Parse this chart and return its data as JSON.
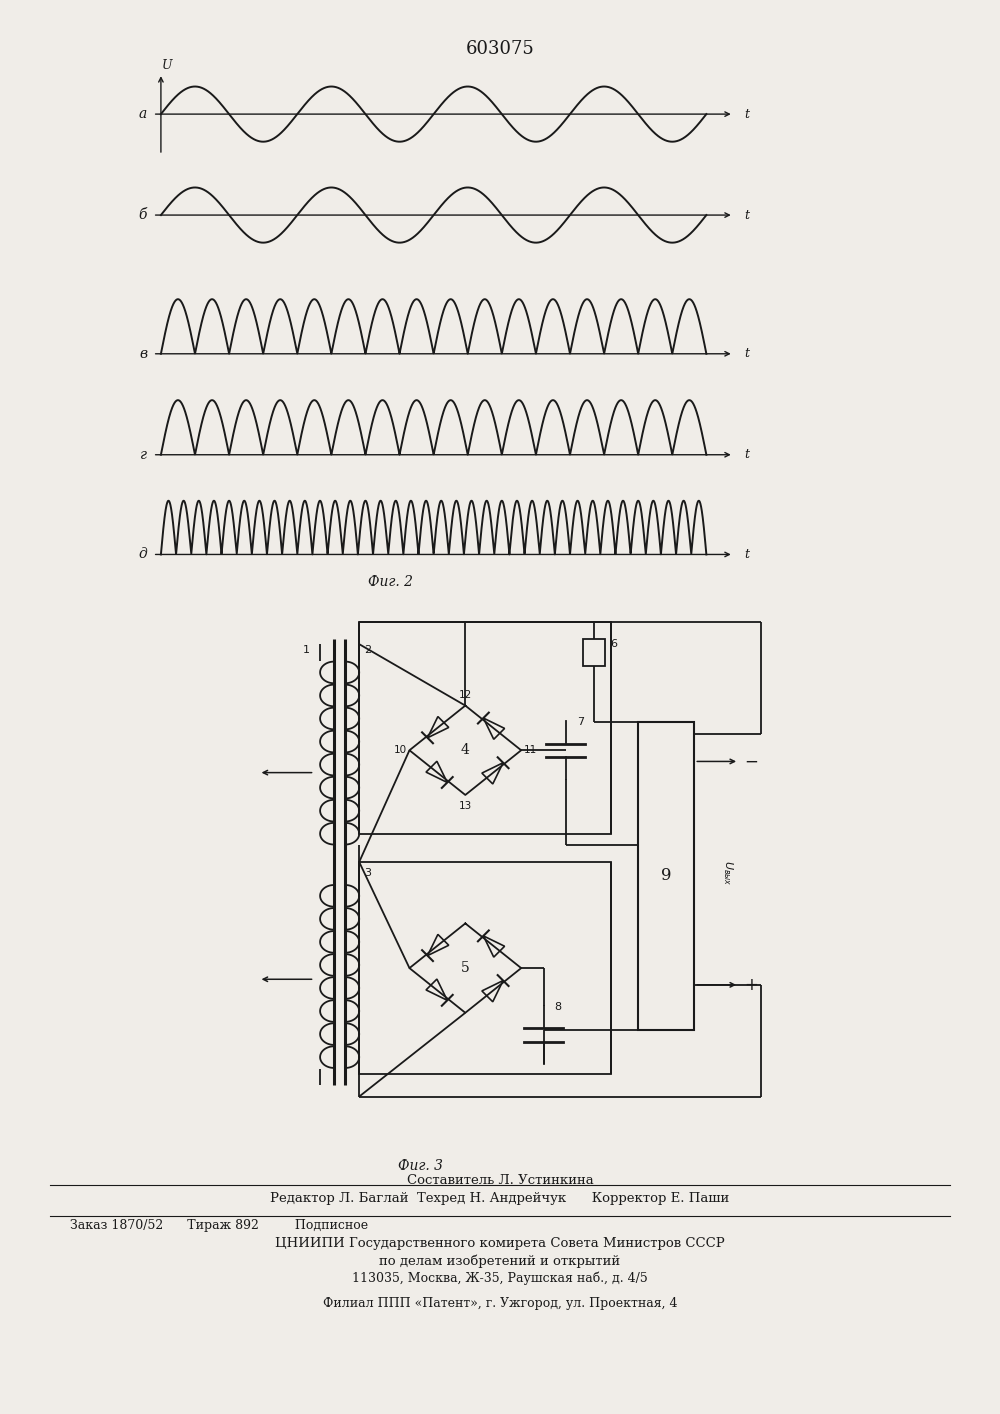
{
  "title": "603075",
  "fig2_caption": "Фиг. 2",
  "fig3_caption": "Фиг. 3",
  "waveform_labels": [
    "а",
    "б",
    "в",
    "г",
    "д"
  ],
  "waveform_ylabel": "U",
  "waveform_xlabel": "t",
  "waveform_specs": [
    {
      "label": "а",
      "cycles": 4,
      "amp": 1.0,
      "rectified": false
    },
    {
      "label": "б",
      "cycles": 4,
      "amp": 1.0,
      "rectified": false
    },
    {
      "label": "в",
      "cycles": 8,
      "amp": 0.75,
      "rectified": true
    },
    {
      "label": "г",
      "cycles": 8,
      "amp": 0.75,
      "rectified": true
    },
    {
      "label": "д",
      "cycles": 18,
      "amp": 0.55,
      "rectified": true
    }
  ],
  "footer_lines": [
    "Составитель Л. Устинкина",
    "Редактор Л. Баглай  Техред Н. Андрейчук      Корректор Е. Паши",
    "Заказ 1870/52      Тираж 892         Подписное",
    "ЦНИИПИ Государственного комирета Совета Министров СССР",
    "по делам изобретений и открытий",
    "113035, Москва, Ж-35, Раушская наб., д. 4/5",
    "Филиал ППП «Патент», г. Ужгород, ул. Проектная, 4"
  ],
  "bg_color": "#f0ede8",
  "line_color": "#1a1a1a"
}
